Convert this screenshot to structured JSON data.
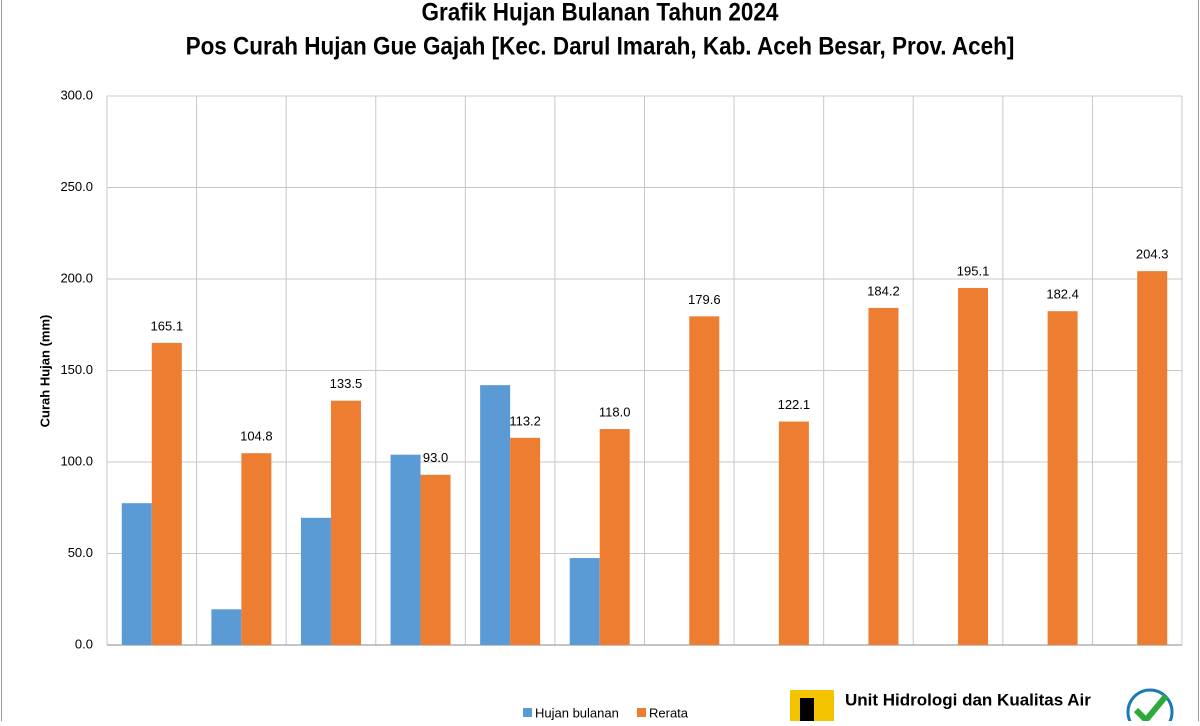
{
  "chart_data": {
    "type": "bar",
    "title": "Grafik Hujan Bulanan Tahun 2024",
    "subtitle": "Pos Curah Hujan Gue Gajah [Kec. Darul Imarah, Kab. Aceh Besar, Prov. Aceh]",
    "y_label": "Curah Hujan (mm)",
    "categories": [
      null,
      null,
      null,
      null,
      null,
      null,
      null,
      null,
      null,
      null,
      null,
      null
    ],
    "series": [
      {
        "name": "Hujan bulanan",
        "color": "#5b9bd5",
        "values": [
          77.5,
          19.5,
          69.5,
          104.0,
          142.0,
          47.5,
          null,
          null,
          null,
          null,
          null,
          null
        ]
      },
      {
        "name": "Rerata",
        "color": "#ed7d31",
        "values": [
          165.1,
          104.8,
          133.5,
          93.0,
          113.2,
          118.0,
          179.6,
          122.1,
          184.2,
          195.1,
          182.4,
          204.3
        ],
        "value_labels": [
          "165.1",
          "104.8",
          "133.5",
          "93.0",
          "113.2",
          "118.0",
          "179.6",
          "122.1",
          "184.2",
          "195.1",
          "182.4",
          "204.3"
        ]
      }
    ],
    "ylim": [
      0,
      300
    ],
    "yticks": [
      {
        "value": 0,
        "label": "0.0"
      },
      {
        "value": 50,
        "label": "50.0"
      },
      {
        "value": 100,
        "label": "100.0"
      },
      {
        "value": 150,
        "label": "150.0"
      },
      {
        "value": 200,
        "label": "200.0"
      },
      {
        "value": 250,
        "label": "250.0"
      },
      {
        "value": 300,
        "label": "300.0"
      }
    ],
    "grid": true,
    "legend": "bottom"
  },
  "footer": {
    "organization": "Unit Hidrologi dan Kualitas Air"
  }
}
